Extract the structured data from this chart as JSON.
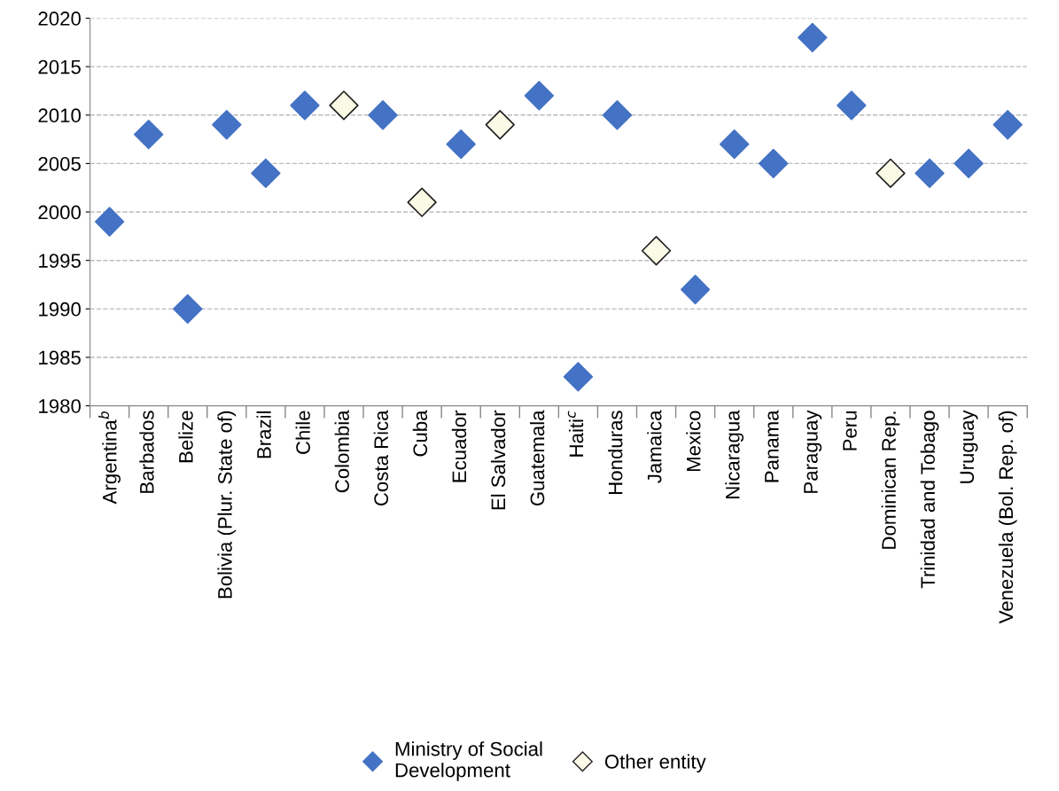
{
  "chart_data": {
    "type": "scatter",
    "categories": [
      "Argentina$^{b}$",
      "Barbados",
      "Belize",
      "Bolivia (Plur. State of)",
      "Brazil",
      "Chile",
      "Colombia",
      "Costa Rica",
      "Cuba",
      "Ecuador",
      "El Salvador",
      "Guatemala",
      "Haiti$^{c}$",
      "Honduras",
      "Jamaica",
      "Mexico",
      "Nicaragua",
      "Panama",
      "Paraguay",
      "Peru",
      "Dominican Rep.",
      "Trinidad and Tobago",
      "Uruguay",
      "Venezuela (Bol. Rep. of)"
    ],
    "series": [
      {
        "name": "Ministry of Social\nDevelopment",
        "color": "#4472c4",
        "values": [
          1999,
          2008,
          1990,
          2009,
          2004,
          2011,
          null,
          2010,
          null,
          2007,
          null,
          2012,
          1983,
          2010,
          null,
          1992,
          2007,
          2005,
          2018,
          2011,
          null,
          2004,
          2005,
          2009
        ]
      },
      {
        "name": "Other entity",
        "color": "#fafae6",
        "values": [
          null,
          null,
          null,
          null,
          null,
          null,
          2011,
          null,
          2001,
          null,
          2009,
          null,
          null,
          null,
          1996,
          null,
          null,
          null,
          null,
          null,
          2004,
          null,
          null,
          null
        ]
      }
    ],
    "ylim": [
      1980,
      2020
    ],
    "yticks": [
      1980,
      1985,
      1990,
      1995,
      2000,
      2005,
      2010,
      2015,
      2020
    ],
    "grid": "y",
    "legend": "bottom",
    "marker": "diamond"
  }
}
